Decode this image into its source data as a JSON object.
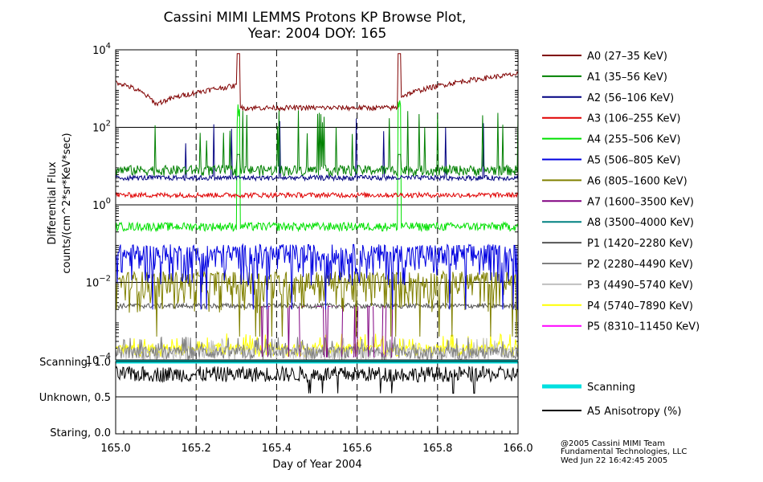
{
  "chart_data": {
    "type": "line",
    "title": "Cassini MIMI LEMMS Protons KP Browse Plot,",
    "subtitle": "Year: 2004 DOY: 165",
    "xlabel": "Day of Year 2004",
    "ylabel_line1": "Differential Flux",
    "ylabel_line2": "counts/(cm^2*sr*KeV*sec)",
    "xlim": [
      165.0,
      166.0
    ],
    "x_ticks": [
      "165.0",
      "165.2",
      "165.4",
      "165.6",
      "165.8",
      "166.0"
    ],
    "ylim": [
      0.0001,
      10000
    ],
    "y_scale": "log",
    "y_ticks": [
      {
        "base": "10",
        "exp": "4"
      },
      {
        "base": "10",
        "exp": "2"
      },
      {
        "base": "10",
        "exp": "0"
      },
      {
        "base": "10",
        "exp": "−2"
      },
      {
        "base": "10",
        "exp": "−4"
      }
    ],
    "grid": "dashed vertical at 0.2 day intervals, solid horizontal at decades",
    "legend_position": "right",
    "series": [
      {
        "name": "A0 (27–35 KeV)",
        "color": "#800000",
        "level": 300,
        "event_level": 3000,
        "style": "a0"
      },
      {
        "name": "A1 (35–56 KeV)",
        "color": "#008000",
        "level": 8,
        "event_level": 40,
        "style": "spiky"
      },
      {
        "name": "A2 (56–106 KeV)",
        "color": "#000080",
        "level": 5,
        "event_level": 5,
        "style": "flat"
      },
      {
        "name": "A3 (106–255 KeV)",
        "color": "#e00000",
        "level": 1.8,
        "event_level": 1.8,
        "style": "flat"
      },
      {
        "name": "A4 (255–506 KeV)",
        "color": "#00e000",
        "level": 0.28,
        "event_level": 0.28,
        "style": "a4"
      },
      {
        "name": "A5 (506–805 KeV)",
        "color": "#0000e0",
        "level": 0.04,
        "event_level": 0.04,
        "style": "noisy"
      },
      {
        "name": "A6 (805–1600 KeV)",
        "color": "#808000",
        "level": 0.008,
        "event_level": 0.008,
        "style": "noisy"
      },
      {
        "name": "A7 (1600–3500 KeV)",
        "color": "#800080",
        "level": 0.002,
        "event_level": 0.002,
        "style": "sparse"
      },
      {
        "name": "A8 (3500–4000 KeV)",
        "color": "#008080",
        "level": 0.0002,
        "event_level": 0.0002,
        "style": "none"
      },
      {
        "name": "P1 (1420–2280 KeV)",
        "color": "#555555",
        "level": 0.0025,
        "event_level": 0.0025,
        "style": "flat"
      },
      {
        "name": "P2 (2280–4490 KeV)",
        "color": "#808080",
        "level": 0.0001,
        "event_level": 0.0001,
        "style": "floor"
      },
      {
        "name": "P3 (4490–5740 KeV)",
        "color": "#c0c0c0",
        "level": 0.0001,
        "event_level": 0.0001,
        "style": "floor"
      },
      {
        "name": "P4 (5740–7890 KeV)",
        "color": "#ffff00",
        "level": 0.00012,
        "event_level": 0.00012,
        "style": "floor"
      },
      {
        "name": "P5 (8310–11450 KeV)",
        "color": "#ff00ff",
        "level": 0.0001,
        "event_level": 0.0001,
        "style": "none"
      }
    ],
    "events": [
      165.305,
      165.705
    ],
    "lower_panel": {
      "labels": [
        {
          "text": "Scanning, 1.0",
          "value": 1.0
        },
        {
          "text": "Unknown, 0.5",
          "value": 0.5
        },
        {
          "text": "Staring, 0.0",
          "value": 0.0
        }
      ],
      "ylim": [
        0.0,
        1.0
      ],
      "scanning": {
        "name": "Scanning",
        "color": "#00e0e0",
        "value": 1.0
      },
      "anisotropy": {
        "name": "A5 Anisotropy (%)",
        "color": "#000000",
        "level": 0.82
      }
    }
  },
  "credits": {
    "line1": "@2005 Cassini MIMI Team",
    "line2": "Fundamental Technologies, LLC",
    "line3": "Wed Jun 22 16:42:45 2005"
  }
}
